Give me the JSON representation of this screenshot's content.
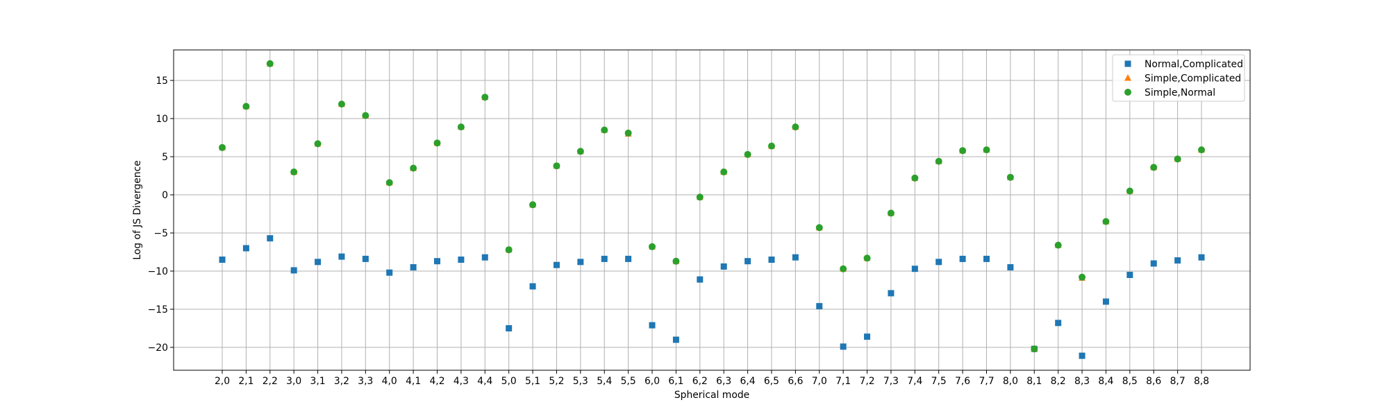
{
  "chart_data": {
    "type": "scatter",
    "title": "",
    "xlabel": "Spherical mode",
    "ylabel": "Log of JS Divergence",
    "ylim": [
      -23,
      19
    ],
    "yticks": [
      15,
      10,
      5,
      0,
      -5,
      -10,
      -15,
      -20
    ],
    "ytick_labels": [
      "15",
      "10",
      "5",
      "0",
      "−5",
      "−10",
      "−15",
      "−20"
    ],
    "grid": true,
    "legend_position": "top-right",
    "categories": [
      "2,0",
      "2,1",
      "2,2",
      "3,0",
      "3,1",
      "3,2",
      "3,3",
      "4,0",
      "4,1",
      "4,2",
      "4,3",
      "4,4",
      "5,0",
      "5,1",
      "5,2",
      "5,3",
      "5,4",
      "5,5",
      "6,0",
      "6,1",
      "6,2",
      "6,3",
      "6,4",
      "6,5",
      "6,6",
      "7,0",
      "7,1",
      "7,2",
      "7,3",
      "7,4",
      "7,5",
      "7,6",
      "7,7",
      "8,0",
      "8,1",
      "8,2",
      "8,3",
      "8,4",
      "8,5",
      "8,6",
      "8,7",
      "8,8"
    ],
    "series": [
      {
        "name": "Normal,Complicated",
        "marker": "square",
        "color": "#1f77b4",
        "values": [
          -8.5,
          -7.0,
          -5.7,
          -9.9,
          -8.8,
          -8.1,
          -8.4,
          -10.2,
          -9.5,
          -8.7,
          -8.5,
          -8.2,
          -17.5,
          -12.0,
          -9.2,
          -8.8,
          -8.4,
          -8.4,
          -17.1,
          -19.0,
          -11.1,
          -9.4,
          -8.7,
          -8.5,
          -8.2,
          -14.6,
          -19.9,
          -18.6,
          -12.9,
          -9.7,
          -8.8,
          -8.4,
          -8.4,
          -9.5,
          -20.2,
          -16.8,
          -21.1,
          -14.0,
          -10.5,
          -9.0,
          -8.6,
          -8.2
        ]
      },
      {
        "name": "Simple,Complicated",
        "marker": "triangle",
        "color": "#ff7f0e",
        "values": [
          6.2,
          11.6,
          17.2,
          3.0,
          6.7,
          11.9,
          10.4,
          1.6,
          3.5,
          6.8,
          8.9,
          12.8,
          -7.2,
          -1.3,
          3.8,
          5.7,
          8.5,
          8.0,
          -6.8,
          -8.7,
          -0.3,
          3.0,
          5.3,
          6.4,
          8.9,
          -4.3,
          -9.7,
          -8.3,
          -2.4,
          2.2,
          4.4,
          5.8,
          5.9,
          2.3,
          -20.2,
          -6.6,
          -10.9,
          -3.5,
          0.5,
          3.6,
          4.7,
          5.9
        ]
      },
      {
        "name": "Simple,Normal",
        "marker": "circle",
        "color": "#2ca02c",
        "values": [
          6.2,
          11.6,
          17.2,
          3.0,
          6.7,
          11.9,
          10.4,
          1.6,
          3.5,
          6.8,
          8.9,
          12.8,
          -7.2,
          -1.3,
          3.8,
          5.7,
          8.5,
          8.1,
          -6.8,
          -8.7,
          -0.3,
          3.0,
          5.3,
          6.4,
          8.9,
          -4.3,
          -9.7,
          -8.3,
          -2.4,
          2.2,
          4.4,
          5.8,
          5.9,
          2.3,
          -20.2,
          -6.6,
          -10.8,
          -3.5,
          0.5,
          3.6,
          4.7,
          5.9
        ]
      }
    ]
  }
}
